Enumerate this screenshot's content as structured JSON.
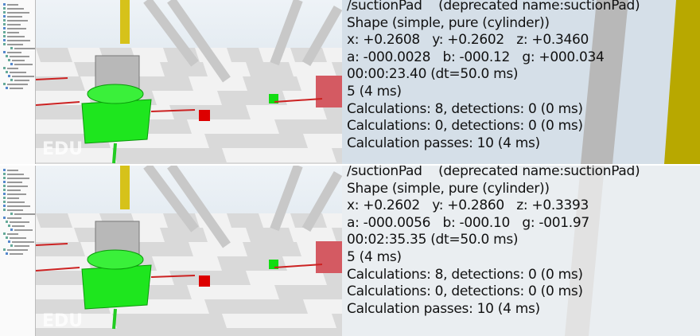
{
  "watermark": "EDU",
  "panels": [
    {
      "lines": [
        "/suctionPad    (deprecated name:suctionPad)",
        "Shape (simple, pure (cylinder))",
        "x: +0.2608   y: +0.2602   z: +0.3460",
        "a: -000.0028   b: -000.12   g: +000.034",
        "00:00:23.40 (dt=50.0 ms)",
        "5 (4 ms)",
        "Calculations: 8, detections: 0 (0 ms)",
        "Calculations: 0, detections: 0 (0 ms)",
        "Calculation passes: 10 (4 ms)"
      ]
    },
    {
      "lines": [
        "/suctionPad    (deprecated name:suctionPad)",
        "Shape (simple, pure (cylinder))",
        "x: +0.2602   y: +0.2860   z: +0.3393",
        "a: -000.0056   b: -000.10   g: -001.97",
        "00:02:35.35 (dt=50.0 ms)",
        "5 (4 ms)",
        "Calculations: 8, detections: 0 (0 ms)",
        "Calculations: 0, detections: 0 (0 ms)",
        "Calculation passes: 10 (4 ms)"
      ]
    }
  ]
}
